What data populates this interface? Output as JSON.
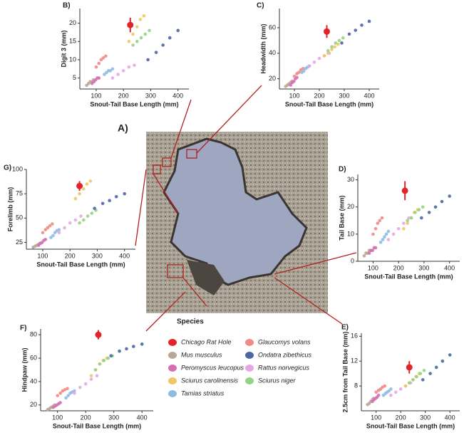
{
  "figure_label": "A)",
  "legend_title": "Species",
  "species": [
    {
      "name": "Chicago Rat Hole",
      "color": "#e0242a"
    },
    {
      "name": "Mus musculus",
      "color": "#b9a796"
    },
    {
      "name": "Peromyscus leucopus",
      "color": "#d46fb3"
    },
    {
      "name": "Glaucomys volans",
      "color": "#f08a86"
    },
    {
      "name": "Tamias striatus",
      "color": "#8fbbe3"
    },
    {
      "name": "Rattus norvegicus",
      "color": "#e6a6e6"
    },
    {
      "name": "Sciurus carolinensis",
      "color": "#f2c466"
    },
    {
      "name": "Sciurus niger",
      "color": "#95d482"
    },
    {
      "name": "Ondatra zibethicus",
      "color": "#4a66a6"
    }
  ],
  "chart_data": [
    {
      "type": "scatter",
      "panel": "B)",
      "xlabel": "Snout-Tail Base Length (mm)",
      "ylabel": "Digit 3 (mm)",
      "xlim": [
        40,
        440
      ],
      "ylim": [
        2,
        24
      ],
      "xticks": [
        100,
        200,
        300,
        400
      ],
      "yticks": [
        5,
        10,
        15,
        20
      ],
      "rat_hole": {
        "x": 225,
        "y": 19.5,
        "xerr": 10,
        "yerr": 2
      },
      "series": [
        {
          "x": [
            65,
            72,
            78,
            85,
            90
          ],
          "y": [
            3,
            3.5,
            4,
            4,
            4.5
          ]
        },
        {
          "x": [
            85,
            92,
            98,
            104,
            110
          ],
          "y": [
            3.5,
            4,
            4.5,
            5,
            5
          ]
        },
        {
          "x": [
            100,
            110,
            118,
            126,
            135
          ],
          "y": [
            8,
            9,
            10,
            10.5,
            11
          ]
        },
        {
          "x": [
            130,
            138,
            145,
            152,
            160
          ],
          "y": [
            6,
            6.5,
            7,
            7,
            7.5
          ]
        },
        {
          "x": [
            160,
            180,
            200,
            220,
            240
          ],
          "y": [
            5,
            6,
            7,
            8,
            8.5
          ]
        },
        {
          "x": [
            220,
            235,
            250,
            262,
            275
          ],
          "y": [
            15,
            17,
            19,
            21,
            22
          ]
        },
        {
          "x": [
            235,
            250,
            265,
            280,
            295
          ],
          "y": [
            14,
            15,
            16,
            17,
            18
          ]
        },
        {
          "x": [
            290,
            320,
            345,
            370,
            400
          ],
          "y": [
            10,
            12,
            14,
            16,
            18
          ]
        }
      ]
    },
    {
      "type": "scatter",
      "panel": "C)",
      "xlabel": "Snout-Tail Base Length (mm)",
      "ylabel": "Headwidth (mm)",
      "xlim": [
        40,
        440
      ],
      "ylim": [
        12,
        75
      ],
      "xticks": [
        100,
        200,
        300,
        400
      ],
      "yticks": [
        20,
        40,
        60
      ],
      "rat_hole": {
        "x": 230,
        "y": 57,
        "xerr": 10,
        "yerr": 5
      },
      "series": [
        {
          "x": [
            65,
            72,
            78,
            85,
            90
          ],
          "y": [
            14,
            15,
            16,
            17,
            18
          ]
        },
        {
          "x": [
            85,
            92,
            98,
            104,
            110
          ],
          "y": [
            15,
            17,
            18,
            20,
            21
          ]
        },
        {
          "x": [
            100,
            110,
            118,
            126,
            135
          ],
          "y": [
            22,
            24,
            25,
            27,
            28
          ]
        },
        {
          "x": [
            130,
            138,
            145,
            152,
            160
          ],
          "y": [
            25,
            26,
            28,
            29,
            30
          ]
        },
        {
          "x": [
            160,
            180,
            200,
            220,
            240
          ],
          "y": [
            30,
            33,
            36,
            38,
            40
          ]
        },
        {
          "x": [
            220,
            235,
            250,
            262,
            275
          ],
          "y": [
            38,
            40,
            43,
            45,
            47
          ]
        },
        {
          "x": [
            235,
            250,
            265,
            280,
            295
          ],
          "y": [
            42,
            45,
            48,
            50,
            52
          ]
        },
        {
          "x": [
            290,
            320,
            345,
            370,
            400
          ],
          "y": [
            48,
            55,
            58,
            62,
            65
          ]
        }
      ]
    },
    {
      "type": "scatter",
      "panel": "G)",
      "xlabel": "Snout-Tail Base Length (mm)",
      "ylabel": "Forelimb (mm)",
      "xlim": [
        40,
        440
      ],
      "ylim": [
        18,
        100
      ],
      "xticks": [
        100,
        200,
        300,
        400
      ],
      "yticks": [
        25,
        50,
        75,
        100
      ],
      "rat_hole": {
        "x": 235,
        "y": 83,
        "xerr": 10,
        "yerr": 5
      },
      "series": [
        {
          "x": [
            65,
            72,
            78,
            85,
            90
          ],
          "y": [
            20,
            21,
            22,
            23,
            24
          ]
        },
        {
          "x": [
            85,
            92,
            98,
            104,
            110
          ],
          "y": [
            22,
            24,
            25,
            27,
            28
          ]
        },
        {
          "x": [
            100,
            110,
            118,
            126,
            135
          ],
          "y": [
            35,
            38,
            40,
            42,
            44
          ]
        },
        {
          "x": [
            130,
            138,
            145,
            152,
            160
          ],
          "y": [
            30,
            32,
            35,
            37,
            38
          ]
        },
        {
          "x": [
            160,
            180,
            200,
            220,
            240
          ],
          "y": [
            35,
            40,
            45,
            48,
            52
          ]
        },
        {
          "x": [
            220,
            235,
            250,
            262,
            275
          ],
          "y": [
            70,
            75,
            80,
            85,
            88
          ]
        },
        {
          "x": [
            235,
            250,
            265,
            280,
            295
          ],
          "y": [
            45,
            48,
            52,
            55,
            58
          ]
        },
        {
          "x": [
            290,
            320,
            345,
            370,
            400
          ],
          "y": [
            60,
            65,
            68,
            72,
            75
          ]
        }
      ]
    },
    {
      "type": "scatter",
      "panel": "D)",
      "xlabel": "Snout-Tail Base Length (mm)",
      "ylabel": "Tail Base (mm)",
      "xlim": [
        40,
        440
      ],
      "ylim": [
        0,
        32
      ],
      "xticks": [
        100,
        200,
        300,
        400
      ],
      "yticks": [
        0,
        10,
        20,
        30
      ],
      "rat_hole": {
        "x": 225,
        "y": 26,
        "xerr": 10,
        "yerr": 3.5
      },
      "series": [
        {
          "x": [
            65,
            72,
            78,
            85,
            90
          ],
          "y": [
            2,
            3,
            3,
            4,
            4
          ]
        },
        {
          "x": [
            85,
            92,
            98,
            104,
            110
          ],
          "y": [
            3,
            4,
            4,
            5,
            5
          ]
        },
        {
          "x": [
            100,
            110,
            118,
            126,
            135
          ],
          "y": [
            10,
            12,
            14,
            15,
            16
          ]
        },
        {
          "x": [
            130,
            138,
            145,
            152,
            160
          ],
          "y": [
            7,
            8,
            9,
            10,
            11
          ]
        },
        {
          "x": [
            160,
            180,
            200,
            220,
            240
          ],
          "y": [
            8,
            10,
            12,
            14,
            16
          ]
        },
        {
          "x": [
            220,
            235,
            250,
            262,
            275
          ],
          "y": [
            12,
            14,
            16,
            18,
            19
          ]
        },
        {
          "x": [
            235,
            250,
            265,
            280,
            295
          ],
          "y": [
            15,
            16,
            18,
            19,
            20
          ]
        },
        {
          "x": [
            290,
            320,
            345,
            370,
            400
          ],
          "y": [
            16,
            18,
            20,
            22,
            24
          ]
        }
      ]
    },
    {
      "type": "scatter",
      "panel": "F)",
      "xlabel": "Snout-Tail Base Length (mm)",
      "ylabel": "Hindpaw (mm)",
      "xlim": [
        40,
        440
      ],
      "ylim": [
        15,
        85
      ],
      "xticks": [
        100,
        200,
        300,
        400
      ],
      "yticks": [
        20,
        40,
        60,
        80
      ],
      "rat_hole": {
        "x": 245,
        "y": 80,
        "xerr": 10,
        "yerr": 4
      },
      "series": [
        {
          "x": [
            65,
            72,
            78,
            85,
            90
          ],
          "y": [
            16,
            17,
            18,
            19,
            20
          ]
        },
        {
          "x": [
            85,
            92,
            98,
            104,
            110
          ],
          "y": [
            18,
            19,
            20,
            21,
            22
          ]
        },
        {
          "x": [
            100,
            110,
            118,
            126,
            135
          ],
          "y": [
            28,
            30,
            32,
            33,
            34
          ]
        },
        {
          "x": [
            130,
            138,
            145,
            152,
            160
          ],
          "y": [
            26,
            28,
            30,
            31,
            32
          ]
        },
        {
          "x": [
            160,
            180,
            200,
            220,
            240
          ],
          "y": [
            30,
            35,
            38,
            42,
            45
          ]
        },
        {
          "x": [
            220,
            235,
            250,
            262,
            275
          ],
          "y": [
            45,
            50,
            55,
            58,
            60
          ]
        },
        {
          "x": [
            235,
            250,
            265,
            280,
            295
          ],
          "y": [
            50,
            55,
            58,
            60,
            62
          ]
        },
        {
          "x": [
            290,
            320,
            345,
            370,
            400
          ],
          "y": [
            62,
            66,
            68,
            70,
            72
          ]
        }
      ]
    },
    {
      "type": "scatter",
      "panel": "E)",
      "xlabel": "Snout-Tail Base Length (mm)",
      "ylabel": "2.5cm from Tail Base (mm)",
      "xlim": [
        40,
        440
      ],
      "ylim": [
        4,
        16.5
      ],
      "xticks": [
        100,
        200,
        300,
        400
      ],
      "yticks": [
        8,
        12,
        16
      ],
      "rat_hole": {
        "x": 235,
        "y": 11,
        "xerr": 10,
        "yerr": 1
      },
      "series": [
        {
          "x": [
            65,
            72,
            78,
            85,
            90
          ],
          "y": [
            5,
            5.2,
            5.5,
            5.8,
            6
          ]
        },
        {
          "x": [
            85,
            92,
            98,
            104,
            110
          ],
          "y": [
            5.5,
            5.8,
            6,
            6.2,
            6.5
          ]
        },
        {
          "x": [
            100,
            110,
            118,
            126,
            135
          ],
          "y": [
            7,
            7.3,
            7.5,
            7.8,
            8
          ]
        },
        {
          "x": [
            130,
            138,
            145,
            152,
            160
          ],
          "y": [
            6.5,
            6.8,
            7,
            7.2,
            7.5
          ]
        },
        {
          "x": [
            160,
            180,
            200,
            220,
            240
          ],
          "y": [
            6.5,
            7,
            7.5,
            8,
            8.5
          ]
        },
        {
          "x": [
            220,
            235,
            250,
            262,
            275
          ],
          "y": [
            8,
            8.5,
            9,
            9.5,
            10
          ]
        },
        {
          "x": [
            235,
            250,
            265,
            280,
            295
          ],
          "y": [
            8.5,
            9,
            9.5,
            10,
            10.5
          ]
        },
        {
          "x": [
            290,
            320,
            345,
            370,
            400
          ],
          "y": [
            9,
            10,
            11,
            12,
            13
          ]
        }
      ]
    }
  ]
}
